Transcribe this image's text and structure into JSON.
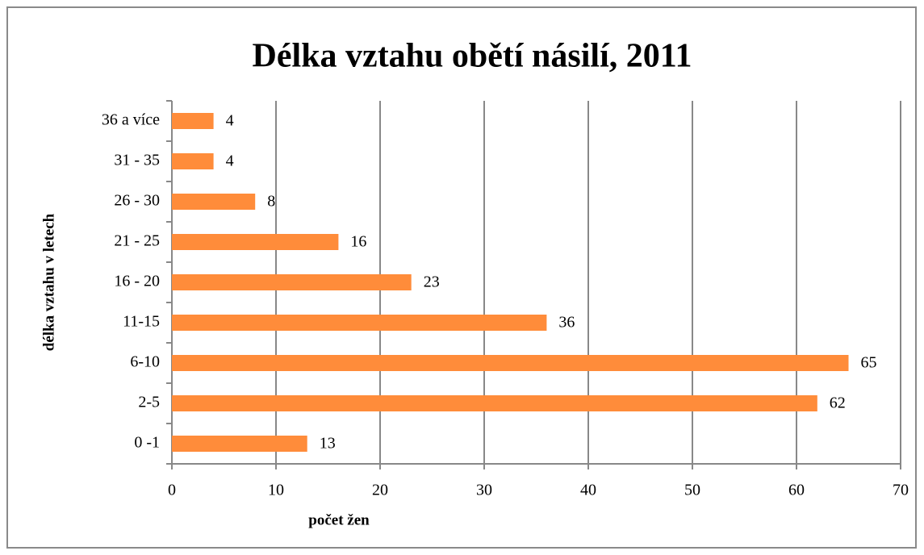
{
  "chart_data": {
    "type": "bar",
    "horizontal": true,
    "title": "Délka vztahu obětí násilí, 2011",
    "xlabel": "počet žen",
    "ylabel": "délka vztahu v letech",
    "categories": [
      "0 -1",
      "2-5",
      "6-10",
      "11-15",
      "16 - 20",
      "21 - 25",
      "26 - 30",
      "31 - 35",
      "36 a více"
    ],
    "values": [
      13,
      62,
      65,
      36,
      23,
      16,
      8,
      4,
      4
    ],
    "color": "#ff8c3a",
    "xlim": [
      0,
      70
    ],
    "xticks": [
      0,
      10,
      20,
      30,
      40,
      50,
      60,
      70
    ],
    "grid": true
  }
}
